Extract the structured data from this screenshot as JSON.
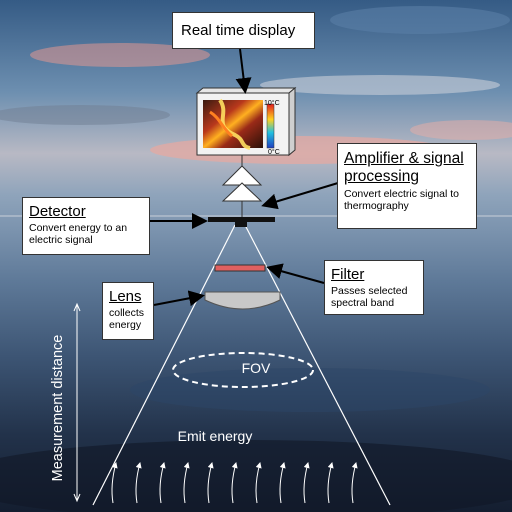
{
  "labels": {
    "real_time_display": "Real time display",
    "amplifier_title": "Amplifier & signal processing",
    "amplifier_desc": "Convert electric signal to thermography",
    "detector_title": "Detector",
    "detector_desc": "Convert energy to an electric signal",
    "filter_title": "Filter",
    "filter_desc": "Passes selected spectral band",
    "lens_title": "Lens",
    "lens_desc": "collects energy",
    "fov": "FOV",
    "emit_energy": "Emit energy",
    "measurement_distance": "Measurement distance",
    "scale_max": "10°C",
    "scale_min": "0°C"
  },
  "colors": {
    "filter": "#e06060",
    "lens": "#c8c8c8",
    "sky_top": "#3a5f86",
    "sea": "#1e2d44"
  }
}
